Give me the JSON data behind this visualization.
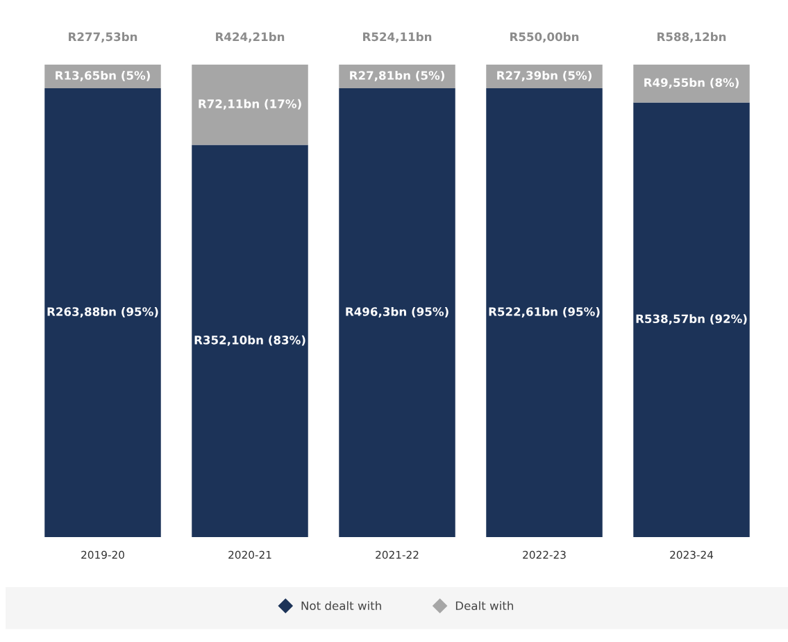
{
  "chart_data": {
    "type": "bar",
    "stacked": true,
    "tick_labels": "x",
    "categories": [
      "2019-20",
      "2020-21",
      "2021-22",
      "2022-23",
      "2023-24"
    ],
    "series": [
      {
        "name": "Not dealt with",
        "color": "#1c3358",
        "values": [
          95,
          83,
          95,
          95,
          92
        ],
        "value_labels": [
          "R263,88bn (95%)",
          "R352,10bn (83%)",
          "R496,3bn (95%)",
          "R522,61bn (95%)",
          "R538,57bn (92%)"
        ]
      },
      {
        "name": "Dealt with",
        "color": "#a6a6a6",
        "values": [
          5,
          17,
          5,
          5,
          8
        ],
        "value_labels": [
          "R13,65bn (5%)",
          "R72,11bn (17%)",
          "R27,81bn (5%)",
          "R27,39bn (5%)",
          "R49,55bn (8%)"
        ]
      }
    ],
    "totals": [
      "R277,53bn",
      "R424,21bn",
      "R524,11bn",
      "R550,00bn",
      "R588,12bn"
    ],
    "legend": "bottom",
    "grid": false
  }
}
